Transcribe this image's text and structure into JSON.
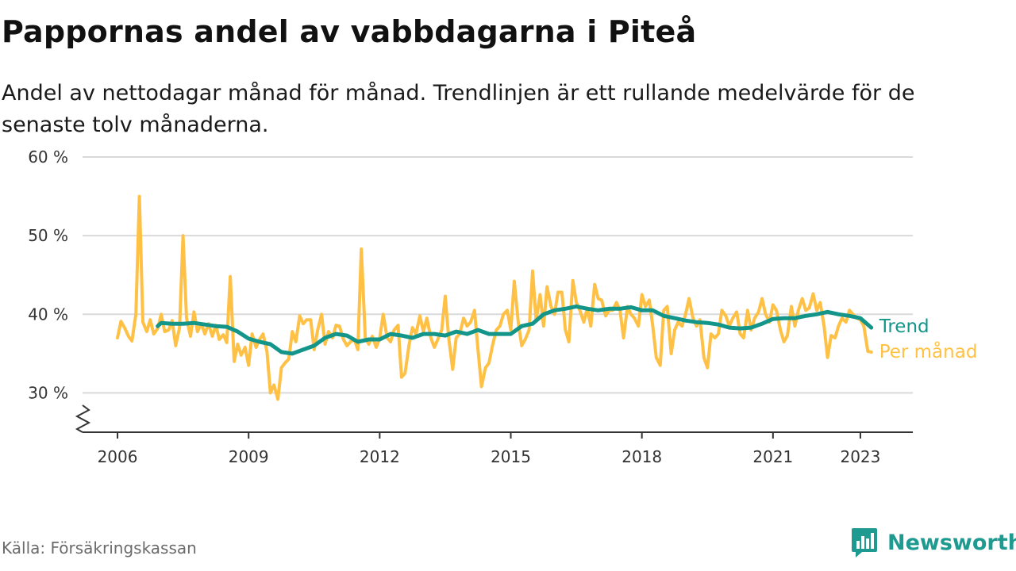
{
  "title": "Pappornas andel av vabbdagarna i Piteå",
  "subtitle": "Andel av nettodagar månad för månad. Trendlinjen är ett rullande medelvärde för de senaste tolv månaderna.",
  "source": "Källa: Försäkringskassan",
  "brand": "Newsworthy",
  "colors": {
    "monthly": "#ffc145",
    "trend": "#13958a",
    "grid": "#d9d9d9",
    "axis": "#333333",
    "brand": "#1f9a90"
  },
  "chart_data": {
    "type": "line",
    "x_unit": "year",
    "xlim": [
      2005.2,
      2024.2
    ],
    "ylim": [
      25,
      60
    ],
    "y_ticks": [
      30,
      40,
      50,
      60
    ],
    "y_tick_labels": [
      "30 %",
      "40 %",
      "50 %",
      "60 %"
    ],
    "x_ticks": [
      2006,
      2009,
      2012,
      2015,
      2018,
      2021,
      2023
    ],
    "x_tick_labels": [
      "2006",
      "2009",
      "2012",
      "2015",
      "2018",
      "2021",
      "2023"
    ],
    "grid": "horizontal",
    "series": [
      {
        "name": "Per månad",
        "color": "#ffc145",
        "points": [
          [
            2006.0,
            37.0
          ],
          [
            2006.08,
            39.1
          ],
          [
            2006.17,
            38.2
          ],
          [
            2006.25,
            37.2
          ],
          [
            2006.33,
            36.6
          ],
          [
            2006.42,
            40.0
          ],
          [
            2006.5,
            55.0
          ],
          [
            2006.58,
            39.0
          ],
          [
            2006.67,
            37.8
          ],
          [
            2006.75,
            39.3
          ],
          [
            2006.83,
            37.5
          ],
          [
            2006.92,
            38.2
          ],
          [
            2007.0,
            40.0
          ],
          [
            2007.08,
            37.8
          ],
          [
            2007.17,
            38.0
          ],
          [
            2007.25,
            39.2
          ],
          [
            2007.33,
            36.0
          ],
          [
            2007.42,
            38.3
          ],
          [
            2007.5,
            50.0
          ],
          [
            2007.58,
            39.5
          ],
          [
            2007.67,
            37.2
          ],
          [
            2007.75,
            40.3
          ],
          [
            2007.83,
            37.8
          ],
          [
            2007.92,
            38.8
          ],
          [
            2008.0,
            37.5
          ],
          [
            2008.08,
            38.8
          ],
          [
            2008.17,
            37.2
          ],
          [
            2008.25,
            38.6
          ],
          [
            2008.33,
            36.8
          ],
          [
            2008.42,
            37.4
          ],
          [
            2008.5,
            36.4
          ],
          [
            2008.58,
            44.8
          ],
          [
            2008.67,
            34.0
          ],
          [
            2008.75,
            36.2
          ],
          [
            2008.83,
            34.8
          ],
          [
            2008.92,
            35.8
          ],
          [
            2009.0,
            33.5
          ],
          [
            2009.08,
            37.5
          ],
          [
            2009.17,
            35.8
          ],
          [
            2009.25,
            36.8
          ],
          [
            2009.33,
            37.5
          ],
          [
            2009.42,
            35.3
          ],
          [
            2009.5,
            30.0
          ],
          [
            2009.58,
            31.0
          ],
          [
            2009.67,
            29.2
          ],
          [
            2009.75,
            33.2
          ],
          [
            2009.83,
            33.8
          ],
          [
            2009.92,
            34.3
          ],
          [
            2010.0,
            37.8
          ],
          [
            2010.08,
            36.5
          ],
          [
            2010.17,
            39.8
          ],
          [
            2010.25,
            38.8
          ],
          [
            2010.33,
            39.3
          ],
          [
            2010.42,
            39.3
          ],
          [
            2010.5,
            35.5
          ],
          [
            2010.58,
            38.0
          ],
          [
            2010.67,
            40.0
          ],
          [
            2010.75,
            36.2
          ],
          [
            2010.83,
            37.8
          ],
          [
            2010.92,
            37.0
          ],
          [
            2011.0,
            38.6
          ],
          [
            2011.08,
            38.5
          ],
          [
            2011.17,
            36.8
          ],
          [
            2011.25,
            36.0
          ],
          [
            2011.33,
            36.5
          ],
          [
            2011.42,
            36.8
          ],
          [
            2011.5,
            35.5
          ],
          [
            2011.58,
            48.3
          ],
          [
            2011.67,
            37.0
          ],
          [
            2011.75,
            36.2
          ],
          [
            2011.83,
            37.2
          ],
          [
            2011.92,
            35.8
          ],
          [
            2012.0,
            37.0
          ],
          [
            2012.08,
            40.0
          ],
          [
            2012.17,
            37.0
          ],
          [
            2012.25,
            36.5
          ],
          [
            2012.33,
            38.0
          ],
          [
            2012.42,
            38.6
          ],
          [
            2012.5,
            32.0
          ],
          [
            2012.58,
            32.5
          ],
          [
            2012.67,
            36.0
          ],
          [
            2012.75,
            38.3
          ],
          [
            2012.83,
            37.5
          ],
          [
            2012.92,
            39.8
          ],
          [
            2013.0,
            37.8
          ],
          [
            2013.08,
            39.5
          ],
          [
            2013.17,
            37.0
          ],
          [
            2013.25,
            35.8
          ],
          [
            2013.33,
            36.8
          ],
          [
            2013.42,
            38.0
          ],
          [
            2013.5,
            42.3
          ],
          [
            2013.58,
            37.0
          ],
          [
            2013.67,
            33.0
          ],
          [
            2013.75,
            37.0
          ],
          [
            2013.83,
            37.5
          ],
          [
            2013.92,
            39.5
          ],
          [
            2014.0,
            38.5
          ],
          [
            2014.08,
            39.0
          ],
          [
            2014.17,
            40.5
          ],
          [
            2014.25,
            35.5
          ],
          [
            2014.33,
            30.8
          ],
          [
            2014.42,
            33.2
          ],
          [
            2014.5,
            33.8
          ],
          [
            2014.58,
            36.0
          ],
          [
            2014.67,
            38.0
          ],
          [
            2014.75,
            38.5
          ],
          [
            2014.83,
            40.0
          ],
          [
            2014.92,
            40.5
          ],
          [
            2015.0,
            38.0
          ],
          [
            2015.08,
            44.2
          ],
          [
            2015.17,
            39.0
          ],
          [
            2015.25,
            36.0
          ],
          [
            2015.33,
            36.8
          ],
          [
            2015.42,
            38.0
          ],
          [
            2015.5,
            45.5
          ],
          [
            2015.58,
            39.2
          ],
          [
            2015.67,
            42.5
          ],
          [
            2015.75,
            38.5
          ],
          [
            2015.83,
            43.5
          ],
          [
            2015.92,
            41.0
          ],
          [
            2016.0,
            40.0
          ],
          [
            2016.08,
            42.8
          ],
          [
            2016.17,
            42.8
          ],
          [
            2016.25,
            38.0
          ],
          [
            2016.33,
            36.5
          ],
          [
            2016.42,
            44.3
          ],
          [
            2016.5,
            41.5
          ],
          [
            2016.58,
            40.5
          ],
          [
            2016.67,
            39.0
          ],
          [
            2016.75,
            40.8
          ],
          [
            2016.83,
            38.5
          ],
          [
            2016.92,
            43.8
          ],
          [
            2017.0,
            42.0
          ],
          [
            2017.08,
            41.8
          ],
          [
            2017.17,
            39.8
          ],
          [
            2017.25,
            40.5
          ],
          [
            2017.33,
            40.5
          ],
          [
            2017.42,
            41.5
          ],
          [
            2017.5,
            40.5
          ],
          [
            2017.58,
            37.0
          ],
          [
            2017.67,
            41.0
          ],
          [
            2017.75,
            40.0
          ],
          [
            2017.83,
            39.5
          ],
          [
            2017.92,
            38.5
          ],
          [
            2018.0,
            42.5
          ],
          [
            2018.08,
            41.0
          ],
          [
            2018.17,
            41.8
          ],
          [
            2018.25,
            38.5
          ],
          [
            2018.33,
            34.5
          ],
          [
            2018.42,
            33.5
          ],
          [
            2018.5,
            40.5
          ],
          [
            2018.58,
            41.0
          ],
          [
            2018.67,
            35.0
          ],
          [
            2018.75,
            38.0
          ],
          [
            2018.83,
            39.0
          ],
          [
            2018.92,
            38.5
          ],
          [
            2019.0,
            40.0
          ],
          [
            2019.08,
            42.0
          ],
          [
            2019.17,
            39.5
          ],
          [
            2019.25,
            38.5
          ],
          [
            2019.33,
            39.3
          ],
          [
            2019.42,
            34.5
          ],
          [
            2019.5,
            33.2
          ],
          [
            2019.58,
            37.5
          ],
          [
            2019.67,
            37.0
          ],
          [
            2019.75,
            37.5
          ],
          [
            2019.83,
            40.5
          ],
          [
            2019.92,
            39.8
          ],
          [
            2020.0,
            38.5
          ],
          [
            2020.08,
            39.5
          ],
          [
            2020.17,
            40.3
          ],
          [
            2020.25,
            37.5
          ],
          [
            2020.33,
            37.0
          ],
          [
            2020.42,
            40.5
          ],
          [
            2020.5,
            38.0
          ],
          [
            2020.58,
            39.5
          ],
          [
            2020.67,
            40.3
          ],
          [
            2020.75,
            42.0
          ],
          [
            2020.83,
            40.0
          ],
          [
            2020.92,
            39.0
          ],
          [
            2021.0,
            41.2
          ],
          [
            2021.08,
            40.5
          ],
          [
            2021.17,
            38.0
          ],
          [
            2021.25,
            36.5
          ],
          [
            2021.33,
            37.3
          ],
          [
            2021.42,
            41.0
          ],
          [
            2021.5,
            38.5
          ],
          [
            2021.58,
            40.5
          ],
          [
            2021.67,
            42.0
          ],
          [
            2021.75,
            40.5
          ],
          [
            2021.83,
            40.8
          ],
          [
            2021.92,
            42.6
          ],
          [
            2022.0,
            40.5
          ],
          [
            2022.08,
            41.5
          ],
          [
            2022.17,
            38.5
          ],
          [
            2022.25,
            34.5
          ],
          [
            2022.33,
            37.3
          ],
          [
            2022.42,
            37.0
          ],
          [
            2022.5,
            38.5
          ],
          [
            2022.58,
            39.5
          ],
          [
            2022.67,
            39.0
          ],
          [
            2022.75,
            40.5
          ],
          [
            2022.83,
            40.0
          ],
          [
            2022.92,
            39.5
          ],
          [
            2023.0,
            39.3
          ],
          [
            2023.08,
            38.5
          ],
          [
            2023.17,
            35.3
          ],
          [
            2023.25,
            35.2
          ]
        ]
      },
      {
        "name": "Trend",
        "color": "#13958a",
        "points": [
          [
            2006.92,
            38.5
          ],
          [
            2007.0,
            38.9
          ],
          [
            2007.25,
            38.8
          ],
          [
            2007.5,
            38.8
          ],
          [
            2007.75,
            38.9
          ],
          [
            2008.0,
            38.7
          ],
          [
            2008.25,
            38.5
          ],
          [
            2008.5,
            38.4
          ],
          [
            2008.75,
            37.8
          ],
          [
            2009.0,
            36.9
          ],
          [
            2009.25,
            36.5
          ],
          [
            2009.5,
            36.2
          ],
          [
            2009.75,
            35.2
          ],
          [
            2010.0,
            35.0
          ],
          [
            2010.25,
            35.5
          ],
          [
            2010.5,
            36.0
          ],
          [
            2010.75,
            37.0
          ],
          [
            2011.0,
            37.5
          ],
          [
            2011.25,
            37.3
          ],
          [
            2011.5,
            36.5
          ],
          [
            2011.75,
            36.8
          ],
          [
            2012.0,
            36.8
          ],
          [
            2012.25,
            37.5
          ],
          [
            2012.5,
            37.3
          ],
          [
            2012.75,
            37.0
          ],
          [
            2013.0,
            37.5
          ],
          [
            2013.25,
            37.5
          ],
          [
            2013.5,
            37.3
          ],
          [
            2013.75,
            37.8
          ],
          [
            2014.0,
            37.5
          ],
          [
            2014.25,
            38.0
          ],
          [
            2014.5,
            37.5
          ],
          [
            2014.75,
            37.5
          ],
          [
            2015.0,
            37.5
          ],
          [
            2015.25,
            38.5
          ],
          [
            2015.5,
            38.8
          ],
          [
            2015.75,
            40.0
          ],
          [
            2016.0,
            40.5
          ],
          [
            2016.25,
            40.7
          ],
          [
            2016.5,
            41.0
          ],
          [
            2016.75,
            40.7
          ],
          [
            2017.0,
            40.5
          ],
          [
            2017.25,
            40.7
          ],
          [
            2017.5,
            40.7
          ],
          [
            2017.75,
            40.9
          ],
          [
            2018.0,
            40.5
          ],
          [
            2018.25,
            40.5
          ],
          [
            2018.5,
            39.8
          ],
          [
            2018.75,
            39.5
          ],
          [
            2019.0,
            39.2
          ],
          [
            2019.25,
            39.0
          ],
          [
            2019.5,
            38.9
          ],
          [
            2019.75,
            38.7
          ],
          [
            2020.0,
            38.3
          ],
          [
            2020.25,
            38.2
          ],
          [
            2020.5,
            38.3
          ],
          [
            2020.75,
            38.8
          ],
          [
            2021.0,
            39.4
          ],
          [
            2021.25,
            39.5
          ],
          [
            2021.5,
            39.5
          ],
          [
            2021.75,
            39.8
          ],
          [
            2022.0,
            40.0
          ],
          [
            2022.25,
            40.3
          ],
          [
            2022.5,
            40.0
          ],
          [
            2022.75,
            39.8
          ],
          [
            2023.0,
            39.5
          ],
          [
            2023.25,
            38.3
          ]
        ]
      }
    ]
  }
}
